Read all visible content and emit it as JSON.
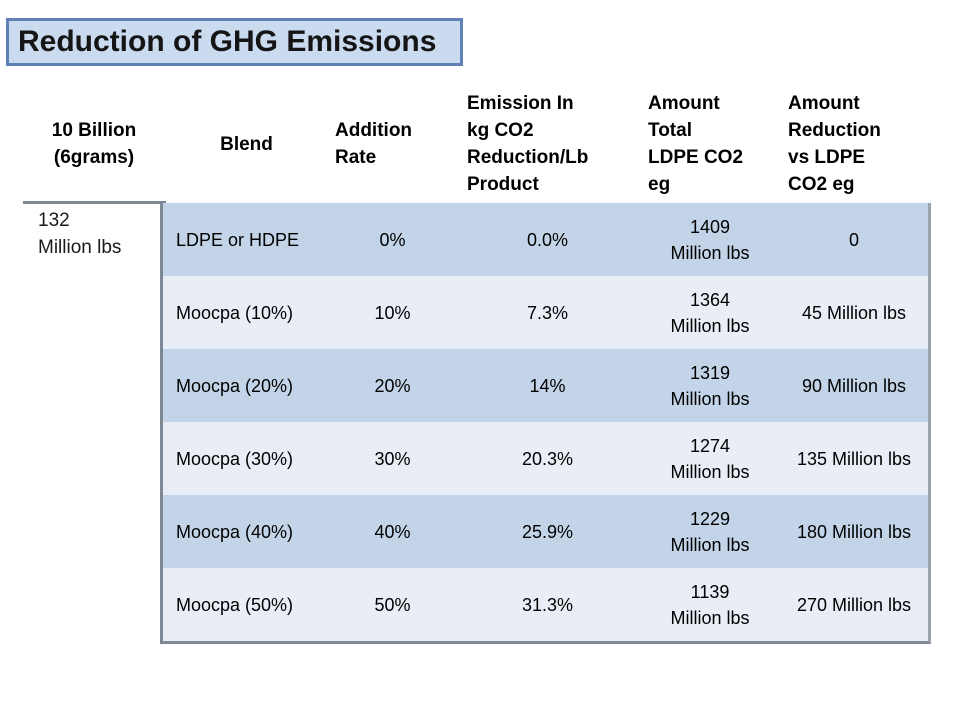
{
  "title": "Reduction of GHG Emissions",
  "colors": {
    "title_fill": "#cadaef",
    "title_border": "#5f81b5",
    "band_dark": "#c3d4e8",
    "band_light": "#e9edf5",
    "table_border": "#7e8995"
  },
  "table": {
    "headers": [
      [
        "10 Billion",
        "(6grams)"
      ],
      "Blend",
      [
        "Addition",
        "Rate"
      ],
      [
        "Emission In",
        "kg CO2",
        "Reduction/Lb",
        "Product"
      ],
      [
        "Amount",
        "Total",
        "LDPE CO2",
        "eg"
      ],
      [
        "Amount",
        "Reduction",
        "vs LDPE",
        "CO2 eg"
      ]
    ],
    "row_label": [
      "132",
      "Million lbs"
    ],
    "rows": [
      {
        "blend": "LDPE or HDPE",
        "addition_rate": "0%",
        "emission_reduction": "0.0%",
        "amount_total": [
          "1409",
          "Million lbs"
        ],
        "amount_reduction": "0"
      },
      {
        "blend": "Moocpa (10%)",
        "addition_rate": "10%",
        "emission_reduction": "7.3%",
        "amount_total": [
          "1364",
          "Million lbs"
        ],
        "amount_reduction": "45 Million lbs"
      },
      {
        "blend": "Moocpa (20%)",
        "addition_rate": "20%",
        "emission_reduction": "14%",
        "amount_total": [
          "1319",
          "Million lbs"
        ],
        "amount_reduction": "90 Million lbs"
      },
      {
        "blend": "Moocpa (30%)",
        "addition_rate": "30%",
        "emission_reduction": "20.3%",
        "amount_total": [
          "1274",
          "Million lbs"
        ],
        "amount_reduction": "135 Million lbs"
      },
      {
        "blend": "Moocpa (40%)",
        "addition_rate": "40%",
        "emission_reduction": "25.9%",
        "amount_total": [
          "1229",
          "Million lbs"
        ],
        "amount_reduction": "180 Million lbs"
      },
      {
        "blend": "Moocpa (50%)",
        "addition_rate": "50%",
        "emission_reduction": "31.3%",
        "amount_total": [
          "1139",
          "Million lbs"
        ],
        "amount_reduction": "270 Million lbs"
      }
    ]
  }
}
